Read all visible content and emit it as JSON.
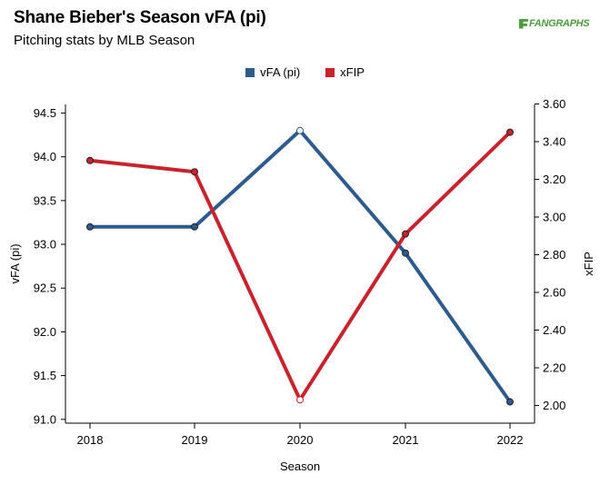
{
  "header": {
    "title": "Shane Bieber's Season vFA (pi)",
    "subtitle": "Pitching stats by MLB Season",
    "logo_text": "FANGRAPHS"
  },
  "colors": {
    "vfa": "#2e5b8e",
    "xfip": "#c8232c",
    "axis": "#000000"
  },
  "chart_data": {
    "type": "line",
    "title": "Shane Bieber's Season vFA (pi)",
    "subtitle": "Pitching stats by MLB Season",
    "xlabel": "Season",
    "ylabel_left": "vFA (pi)",
    "ylabel_right": "xFIP",
    "categories": [
      "2018",
      "2019",
      "2020",
      "2021",
      "2022"
    ],
    "left_axis": {
      "ylim": [
        91.0,
        94.5
      ],
      "ticks": [
        "94.5",
        "94.0",
        "93.5",
        "93.0",
        "92.5",
        "92.0",
        "91.5",
        "91.0"
      ]
    },
    "right_axis": {
      "ylim": [
        2.0,
        3.6
      ],
      "ticks": [
        "3.60",
        "3.40",
        "3.20",
        "3.00",
        "2.80",
        "2.60",
        "2.40",
        "2.20",
        "2.00"
      ]
    },
    "series": [
      {
        "name": "vFA (pi)",
        "axis": "left",
        "color": "#2e5b8e",
        "values": [
          93.2,
          93.2,
          94.3,
          92.9,
          91.2
        ],
        "hollow": [
          false,
          false,
          true,
          false,
          false
        ]
      },
      {
        "name": "xFIP",
        "axis": "right",
        "color": "#c8232c",
        "values": [
          3.3,
          3.24,
          2.03,
          2.91,
          3.45
        ],
        "hollow": [
          false,
          false,
          true,
          false,
          false
        ]
      }
    ],
    "legend_position": "top-center",
    "grid": false
  }
}
